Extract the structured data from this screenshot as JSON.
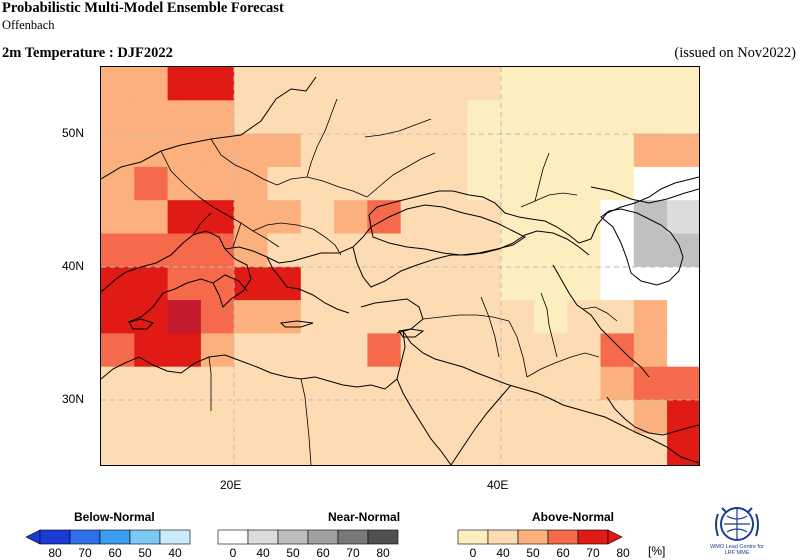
{
  "header": {
    "title": "Probabilistic Multi-Model Ensemble Forecast",
    "subtitle": "Offenbach",
    "variable": "2m Temperature : DJF2022",
    "issued": "(issued on Nov2022)"
  },
  "map": {
    "lat_labels": [
      "50N",
      "40N",
      "30N"
    ],
    "lon_labels": [
      "20E",
      "40E"
    ],
    "colors": {
      "above_40": "#fdeec0",
      "above_50": "#fddcb4",
      "above_60": "#fcb07e",
      "above_70": "#f56a4a",
      "above_80": "#e01a14",
      "above_90": "#c41a2e",
      "near_40": "#ffffff",
      "near_50": "#dcdcdc",
      "near_60": "#c0c0c0"
    }
  },
  "legend": {
    "categories": [
      "Below-Normal",
      "Near-Normal",
      "Above-Normal"
    ],
    "below_ticks": [
      "80",
      "70",
      "60",
      "50",
      "40"
    ],
    "near_ticks": [
      "0",
      "40",
      "50",
      "60",
      "70",
      "80"
    ],
    "above_ticks": [
      "0",
      "40",
      "50",
      "60",
      "70",
      "80"
    ],
    "unit": "[%]",
    "below_colors": [
      "#1a3ad6",
      "#2d6fe8",
      "#3c9ef0",
      "#7cc9f6",
      "#c8ecfb"
    ],
    "near_colors": [
      "#ffffff",
      "#dcdcdc",
      "#bebebe",
      "#a0a0a0",
      "#787878",
      "#505050"
    ],
    "above_colors": [
      "#fdeec0",
      "#fddcb4",
      "#fcb07e",
      "#f56a4a",
      "#e01a14"
    ]
  },
  "logo": {
    "text_line1": "WMO Lead Centre for",
    "text_line2": "LRF MME"
  }
}
